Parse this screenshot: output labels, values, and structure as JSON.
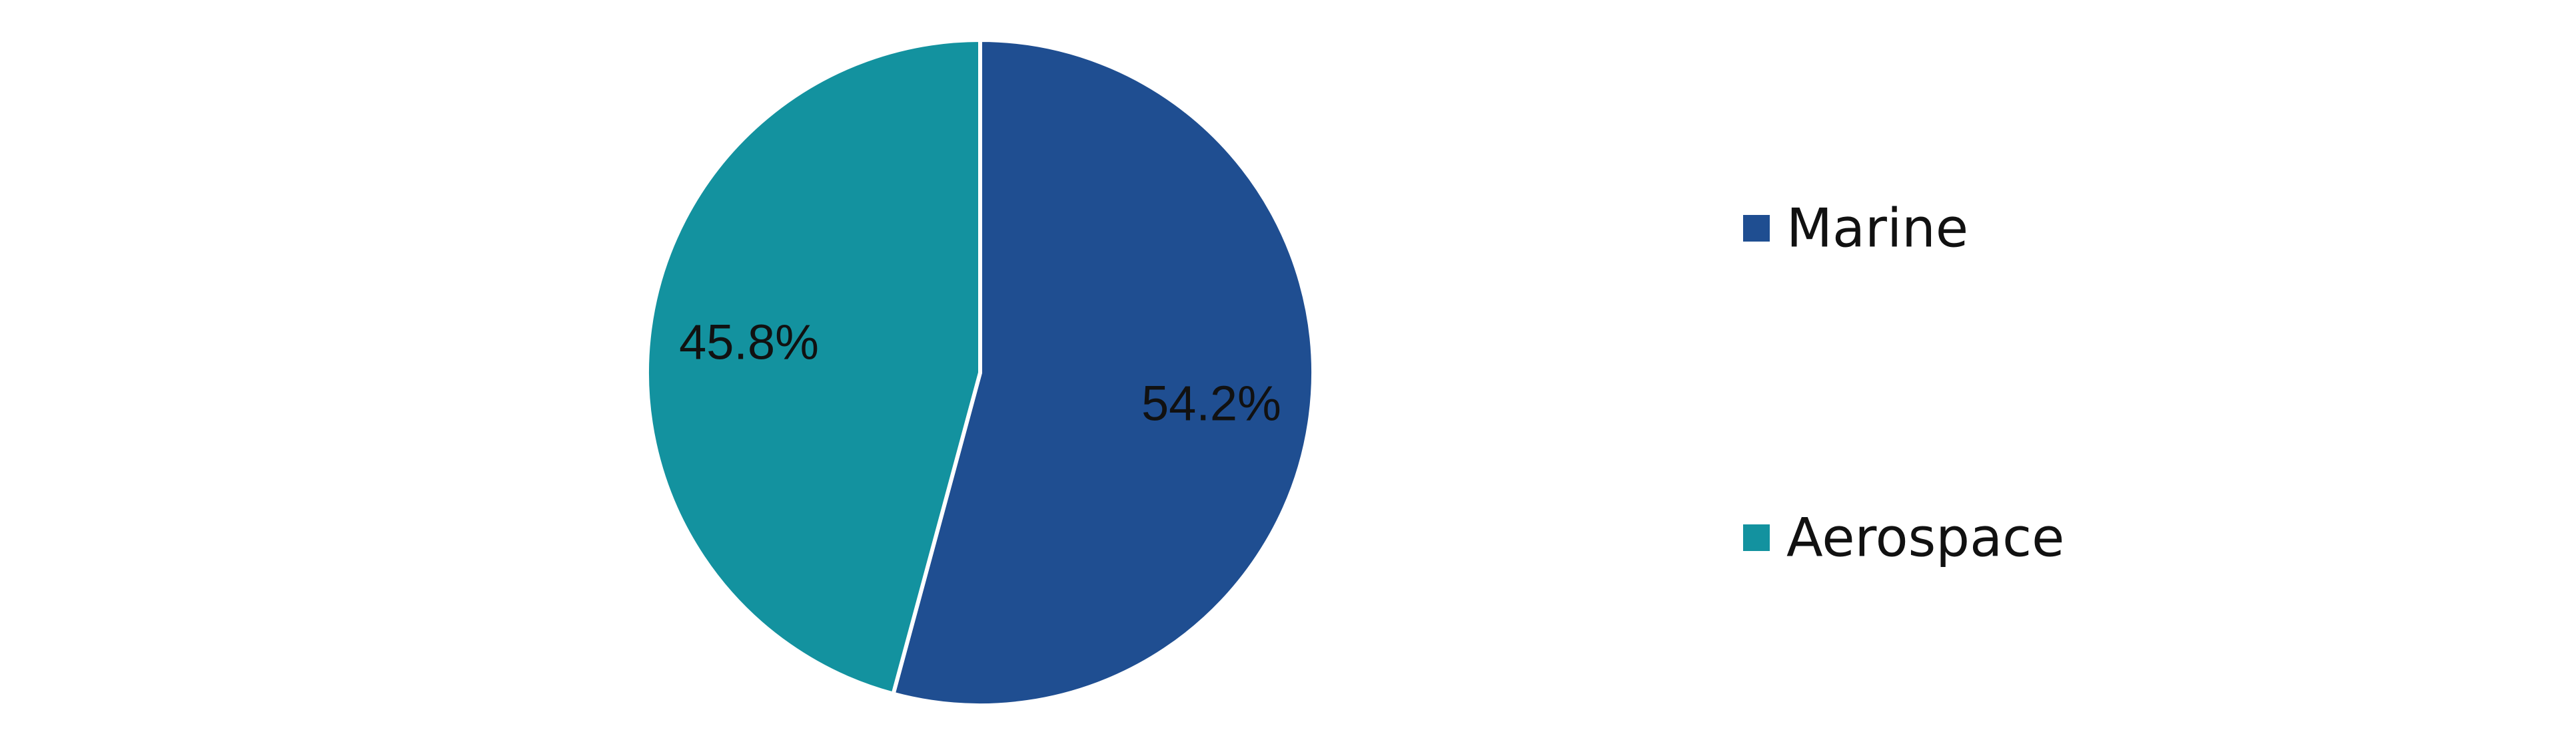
{
  "chart_data": {
    "type": "pie",
    "categories": [
      "Marine",
      "Aerospace"
    ],
    "values": [
      54.2,
      45.8
    ],
    "value_labels": [
      "54.2%",
      "45.8%"
    ],
    "colors": [
      "#1f4e91",
      "#13929f"
    ],
    "start_angle": "12 o'clock",
    "direction": "clockwise",
    "legend": {
      "placement": "right",
      "entries": [
        "Marine",
        "Aerospace"
      ]
    },
    "title": ""
  }
}
